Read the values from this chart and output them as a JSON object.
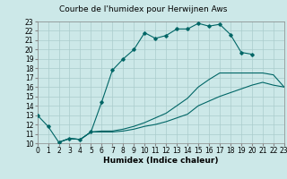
{
  "title": "Courbe de l'humidex pour Herwijnen Aws",
  "xlabel": "Humidex (Indice chaleur)",
  "xlim": [
    0,
    23
  ],
  "ylim": [
    10,
    23
  ],
  "background_color": "#cce8e8",
  "grid_color": "#aacccc",
  "line_color": "#006666",
  "line1_x": [
    0,
    1,
    2,
    3,
    4,
    5,
    6,
    7,
    8,
    9,
    10,
    11,
    12,
    13,
    14,
    15,
    16,
    17,
    18,
    19,
    20
  ],
  "line1_y": [
    13.0,
    11.8,
    10.1,
    10.5,
    10.4,
    11.2,
    14.4,
    17.8,
    19.0,
    20.0,
    21.8,
    21.2,
    21.5,
    22.2,
    22.2,
    22.8,
    22.5,
    22.7,
    21.6,
    19.7,
    19.5
  ],
  "line2_x": [
    2,
    3,
    4,
    5,
    6,
    7,
    8,
    9,
    10,
    11,
    12,
    13,
    14,
    15,
    16,
    17,
    18,
    19,
    20,
    21,
    22,
    23
  ],
  "line2_y": [
    10.1,
    10.5,
    10.4,
    11.2,
    11.2,
    11.2,
    11.3,
    11.5,
    11.8,
    12.0,
    12.3,
    12.7,
    13.1,
    14.0,
    14.5,
    15.0,
    15.4,
    15.8,
    16.2,
    16.5,
    16.2,
    16.0
  ],
  "line3_x": [
    2,
    3,
    4,
    5,
    6,
    7,
    8,
    9,
    10,
    11,
    12,
    13,
    14,
    15,
    16,
    17,
    18,
    19,
    20,
    21,
    22,
    23
  ],
  "line3_y": [
    10.1,
    10.5,
    10.4,
    11.2,
    11.3,
    11.3,
    11.5,
    11.8,
    12.2,
    12.7,
    13.2,
    14.0,
    14.8,
    16.0,
    16.8,
    17.5,
    17.5,
    17.5,
    17.5,
    17.5,
    17.3,
    16.0
  ],
  "xticks": [
    0,
    1,
    2,
    3,
    4,
    5,
    6,
    7,
    8,
    9,
    10,
    11,
    12,
    13,
    14,
    15,
    16,
    17,
    18,
    19,
    20,
    21,
    22,
    23
  ],
  "yticks": [
    10,
    11,
    12,
    13,
    14,
    15,
    16,
    17,
    18,
    19,
    20,
    21,
    22,
    23
  ],
  "tick_fontsize": 5.5,
  "xlabel_fontsize": 6.5,
  "title_fontsize": 6.5
}
